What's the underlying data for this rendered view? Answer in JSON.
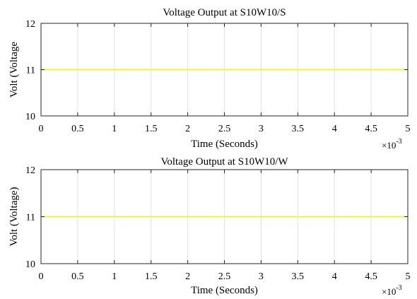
{
  "chart_data": [
    {
      "type": "line",
      "title": "Voltage Output at S10W10/S",
      "xlabel": "Time (Seconds)",
      "ylabel": "Volt (Voltage",
      "x_multiplier": {
        "base": "×10",
        "exponent": "-3"
      },
      "xlim": [
        0,
        5
      ],
      "ylim": [
        10,
        12
      ],
      "x_ticks": [
        "0",
        "0.5",
        "1",
        "1.5",
        "2",
        "2.5",
        "3",
        "3.5",
        "4",
        "4.5",
        "5"
      ],
      "y_ticks": [
        "10",
        "11",
        "12"
      ],
      "x_tick_values": [
        0,
        0.5,
        1,
        1.5,
        2,
        2.5,
        3,
        3.5,
        4,
        4.5,
        5
      ],
      "y_tick_values": [
        10,
        11,
        12
      ],
      "grid": {
        "x": true,
        "y": false
      },
      "series": [
        {
          "color": "#f2ee4a",
          "x": [
            0,
            5
          ],
          "y": [
            11,
            11
          ]
        }
      ]
    },
    {
      "type": "line",
      "title": "Voltage Output at S10W10/W",
      "xlabel": "Time (Seconds)",
      "ylabel": "Volt (Voltage)",
      "x_multiplier": {
        "base": "×10",
        "exponent": "-3"
      },
      "xlim": [
        0,
        5
      ],
      "ylim": [
        10,
        12
      ],
      "x_ticks": [
        "0",
        "0.5",
        "1",
        "1.5",
        "2",
        "2.5",
        "3",
        "3.5",
        "4",
        "4.5",
        "5"
      ],
      "y_ticks": [
        "10",
        "11",
        "12"
      ],
      "x_tick_values": [
        0,
        0.5,
        1,
        1.5,
        2,
        2.5,
        3,
        3.5,
        4,
        4.5,
        5
      ],
      "y_tick_values": [
        10,
        11,
        12
      ],
      "grid": {
        "x": true,
        "y": false
      },
      "series": [
        {
          "color": "#f2ee4a",
          "x": [
            0,
            5
          ],
          "y": [
            11,
            11
          ]
        }
      ]
    }
  ]
}
